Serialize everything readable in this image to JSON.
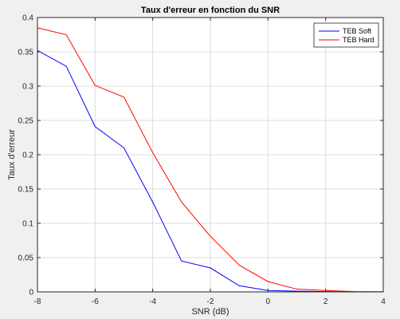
{
  "chart_data": {
    "type": "line",
    "title": "Taux d'erreur en fonction du SNR",
    "xlabel": "SNR (dB)",
    "ylabel": "Taux d'erreur",
    "xlim": [
      -8,
      4
    ],
    "ylim": [
      0,
      0.4
    ],
    "xticks": [
      -8,
      -6,
      -4,
      -2,
      0,
      2,
      4
    ],
    "yticks": [
      0,
      0.05,
      0.1,
      0.15,
      0.2,
      0.25,
      0.3,
      0.35,
      0.4
    ],
    "xtick_labels": [
      "-8",
      "-6",
      "-4",
      "-2",
      "0",
      "2",
      "4"
    ],
    "ytick_labels": [
      "0",
      "0.05",
      "0.1",
      "0.15",
      "0.2",
      "0.25",
      "0.3",
      "0.35",
      "0.4"
    ],
    "grid": true,
    "legend_position": "top-right",
    "x": [
      -8,
      -7,
      -6,
      -5,
      -4,
      -3,
      -2,
      -1,
      0,
      1,
      2,
      3,
      4
    ],
    "series": [
      {
        "name": "TEB Soft",
        "color": "#0000ff",
        "values": [
          0.352,
          0.329,
          0.241,
          0.21,
          0.131,
          0.045,
          0.035,
          0.009,
          0.002,
          0.001,
          0.0005,
          0.0002,
          0.0001
        ]
      },
      {
        "name": "TEB Hard",
        "color": "#ff0000",
        "values": [
          0.385,
          0.375,
          0.301,
          0.284,
          0.203,
          0.131,
          0.081,
          0.039,
          0.015,
          0.004,
          0.002,
          0.0005,
          0.0002
        ]
      }
    ]
  }
}
